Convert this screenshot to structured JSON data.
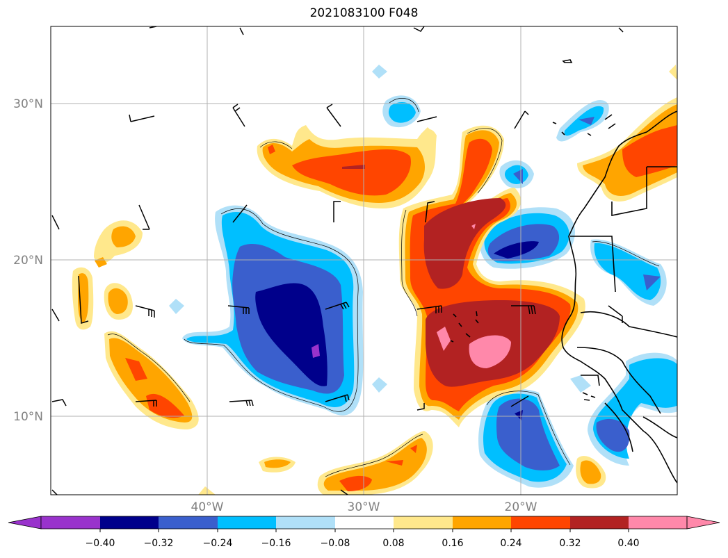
{
  "title": "2021083100 F048",
  "map": {
    "lat_labels": [
      "30°N",
      "20°N",
      "10°N"
    ],
    "lon_labels": [
      "40°W",
      "30°W",
      "20°W"
    ],
    "colors": {
      "frame": "#000000",
      "grid": "#b0b0b0",
      "coast": "#000000"
    }
  },
  "colorbar": {
    "ticks": [
      "−0.40",
      "−0.32",
      "−0.24",
      "−0.16",
      "−0.08",
      "0.08",
      "0.16",
      "0.24",
      "0.32",
      "0.40"
    ],
    "colors": [
      "#9932cc",
      "#00008b",
      "#3a5fcd",
      "#00bfff",
      "#b0e0f8",
      "#ffffff",
      "#ffe88c",
      "#ffa500",
      "#ff4500",
      "#b22222",
      "#ff88aa"
    ]
  },
  "palette": {
    "lt_blue": "#b0e0f8",
    "blue": "#00bfff",
    "mid_blue": "#3a5fcd",
    "navy": "#00008b",
    "purple": "#9932cc",
    "lt_yellow": "#ffe88c",
    "orange": "#ffa500",
    "red_orange": "#ff4500",
    "dark_red": "#b22222",
    "pink": "#ff88aa"
  }
}
